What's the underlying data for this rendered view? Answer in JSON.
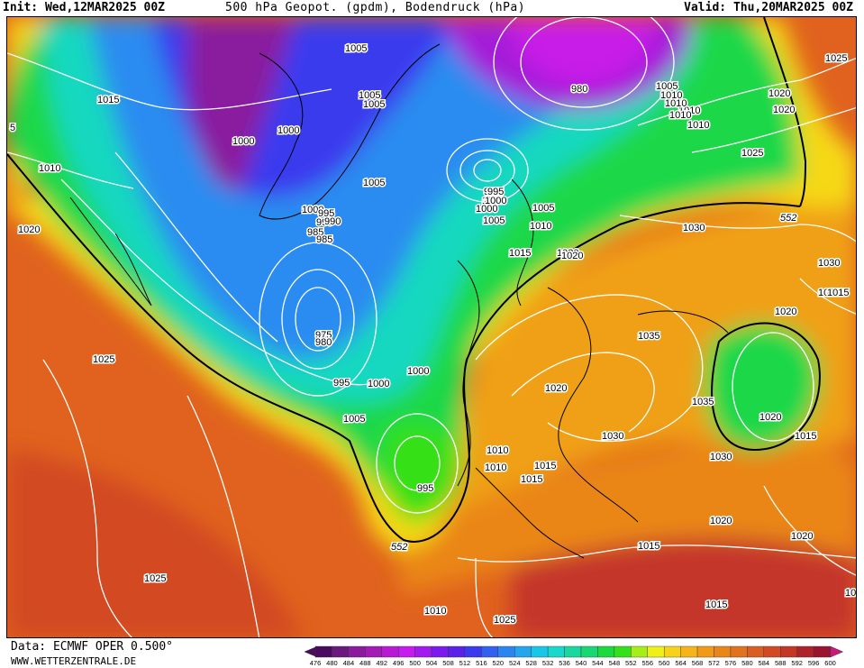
{
  "header": {
    "init": "Init: Wed,12MAR2025 00Z",
    "title": "500 hPa Geopot. (gpdm), Bodendruck (hPa)",
    "valid": "Valid: Thu,20MAR2025 00Z"
  },
  "footer": {
    "source": "Data: ECMWF OPER 0.500°",
    "site": "WWW.WETTERZENTRALE.DE"
  },
  "legend": {
    "values": [
      "476",
      "480",
      "484",
      "488",
      "492",
      "496",
      "500",
      "504",
      "508",
      "512",
      "516",
      "520",
      "524",
      "528",
      "532",
      "536",
      "540",
      "544",
      "548",
      "552",
      "556",
      "560",
      "564",
      "568",
      "572",
      "576",
      "580",
      "584",
      "588",
      "592",
      "596",
      "600"
    ],
    "colors": [
      "#4b0a5e",
      "#6a1a7e",
      "#8a1a9e",
      "#a41ab4",
      "#b81ad4",
      "#c61aee",
      "#a21af0",
      "#7a1aee",
      "#5a22e8",
      "#3a3aee",
      "#3260f0",
      "#2c84f0",
      "#22a6ee",
      "#18c6e8",
      "#18d8cc",
      "#18d8a0",
      "#18d874",
      "#1ada3e",
      "#34e018",
      "#a6ee18",
      "#eef018",
      "#f6d218",
      "#f6b418",
      "#f09a18",
      "#ea8618",
      "#e2721e",
      "#da5e22",
      "#d24a24",
      "#c43626",
      "#b0222a",
      "#9a1430",
      "#c81a7a"
    ]
  },
  "map": {
    "isobars": [
      {
        "label": "1015"
      },
      {
        "label": "1010"
      },
      {
        "label": "1020"
      },
      {
        "label": "1025"
      },
      {
        "label": "1000"
      },
      {
        "label": "1005"
      },
      {
        "label": "1000"
      },
      {
        "label": "1005"
      },
      {
        "label": "1005"
      },
      {
        "label": "1000"
      },
      {
        "label": "995"
      },
      {
        "label": "990"
      },
      {
        "label": "985"
      },
      {
        "label": "975"
      },
      {
        "label": "980"
      },
      {
        "label": "995"
      },
      {
        "label": "1000"
      },
      {
        "label": "1005"
      },
      {
        "label": "1005"
      },
      {
        "label": "1000"
      },
      {
        "label": "995"
      },
      {
        "label": "1000"
      },
      {
        "label": "1005"
      },
      {
        "label": "1010"
      },
      {
        "label": "1010"
      },
      {
        "label": "1015"
      },
      {
        "label": "1015"
      },
      {
        "label": "1020"
      },
      {
        "label": "1030"
      },
      {
        "label": "1035"
      },
      {
        "label": "1035"
      },
      {
        "label": "1030"
      },
      {
        "label": "1030"
      },
      {
        "label": "1030"
      },
      {
        "label": "1020"
      },
      {
        "label": "1020"
      },
      {
        "label": "1020"
      },
      {
        "label": "1015"
      },
      {
        "label": "1015"
      },
      {
        "label": "1025"
      },
      {
        "label": "1025"
      },
      {
        "label": "1020"
      },
      {
        "label": "1020"
      },
      {
        "label": "1015"
      },
      {
        "label": "1015"
      },
      {
        "label": "1015"
      },
      {
        "label": "1010"
      },
      {
        "label": "1025"
      },
      {
        "label": "1025"
      },
      {
        "label": "1025"
      },
      {
        "label": "1015"
      },
      {
        "label": "1010"
      },
      {
        "label": "1015"
      },
      {
        "label": "1020"
      },
      {
        "label": "1010"
      },
      {
        "label": "1010"
      },
      {
        "label": "1010"
      },
      {
        "label": "1010"
      },
      {
        "label": "1010"
      },
      {
        "label": "1005"
      },
      {
        "label": "1000"
      },
      {
        "label": "995"
      },
      {
        "label": "990"
      },
      {
        "label": "985"
      },
      {
        "label": "980"
      },
      {
        "label": "1005"
      },
      {
        "label": "1005"
      },
      {
        "label": "1015"
      },
      {
        "label": "1020"
      },
      {
        "label": "1025"
      },
      {
        "label": "1000"
      },
      {
        "label": "995"
      },
      {
        "label": "1020"
      },
      {
        "label": "5"
      }
    ],
    "contour_552": [
      {
        "label": "552"
      },
      {
        "label": "552"
      }
    ]
  }
}
